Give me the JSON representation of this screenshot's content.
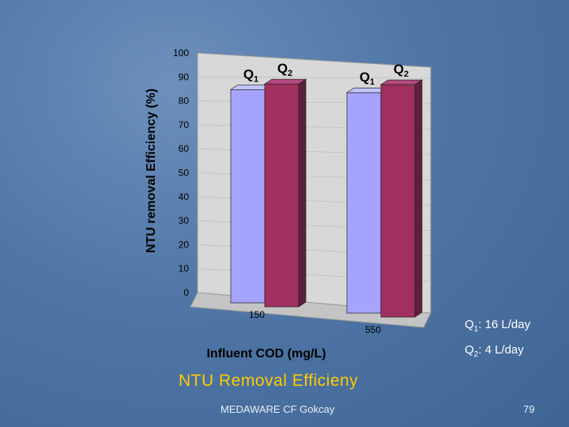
{
  "chart_data": {
    "type": "bar",
    "title": "NTU Removal Efficieny",
    "xlabel": "Influent COD (mg/L)",
    "ylabel": "NTU removal Efficiency (%)",
    "ylim": [
      0,
      100
    ],
    "yticks": [
      "0",
      "10",
      "20",
      "30",
      "40",
      "50",
      "60",
      "70",
      "80",
      "90",
      "100"
    ],
    "categories": [
      "150",
      "550"
    ],
    "series": [
      {
        "name": "Q1",
        "sub": "1",
        "values": [
          89,
          92
        ],
        "color": "#9d9df5"
      },
      {
        "name": "Q2",
        "sub": "2",
        "values": [
          93,
          97
        ],
        "color": "#993366"
      }
    ]
  },
  "legend": [
    {
      "symbol": "Q",
      "sub": "1",
      "text": ": 16 L/day"
    },
    {
      "symbol": "Q",
      "sub": "2",
      "text": ": 4 L/day"
    }
  ],
  "footer": {
    "left": "MEDAWARE   CF Gokcay",
    "page_number": "79"
  }
}
